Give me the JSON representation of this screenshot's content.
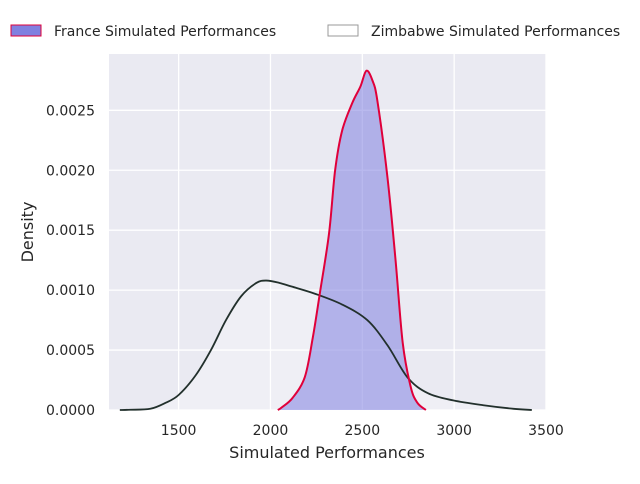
{
  "chart_data": {
    "type": "area",
    "title": "",
    "xlabel": "Simulated Performances",
    "ylabel": "Density",
    "xlim": [
      1121,
      3500
    ],
    "ylim": [
      0,
      0.00297
    ],
    "xticks": [
      1500,
      2000,
      2500,
      3000,
      3500
    ],
    "xtick_labels": [
      "1500",
      "2000",
      "2500",
      "3000",
      "3500"
    ],
    "yticks": [
      0,
      0.0005,
      0.001,
      0.0015,
      0.002,
      0.0025
    ],
    "ytick_labels": [
      "0.0000",
      "0.0005",
      "0.0010",
      "0.0015",
      "0.0020",
      "0.0025"
    ],
    "grid": true,
    "legend_position": "top",
    "series": [
      {
        "name": "France Simulated Performances",
        "fill_color": "#8080e0",
        "line_color": "#e0003a",
        "x": [
          2040,
          2060,
          2120,
          2187,
          2230,
          2269,
          2319,
          2352,
          2390,
          2445,
          2490,
          2522,
          2555,
          2582,
          2637,
          2681,
          2720,
          2764,
          2800,
          2846
        ],
        "y": [
          0,
          2e-05,
          0.0001,
          0.000275,
          0.0006,
          0.000975,
          0.001475,
          0.002,
          0.00233,
          0.00256,
          0.0027,
          0.00283,
          0.00275,
          0.00258,
          0.00194,
          0.00125,
          0.00056,
          0.00019,
          6e-05,
          0.0
        ]
      },
      {
        "name": "Zimbabwe Simulated Performances",
        "fill_color": "#ffffff",
        "line_color": "#22302c",
        "x": [
          1180,
          1236,
          1346,
          1429,
          1500,
          1593,
          1676,
          1758,
          1841,
          1923,
          1978,
          2050,
          2115,
          2242,
          2390,
          2527,
          2637,
          2747,
          2857,
          2995,
          3159,
          3324,
          3423
        ],
        "y": [
          0,
          2e-06,
          1e-05,
          6e-05,
          0.000125,
          0.00029,
          0.0005,
          0.00075,
          0.00095,
          0.00106,
          0.00108,
          0.00106,
          0.00103,
          0.00097,
          0.00088,
          0.00075,
          0.00054,
          0.00027,
          0.00014,
          8e-05,
          4e-05,
          1e-05,
          0
        ]
      }
    ]
  }
}
